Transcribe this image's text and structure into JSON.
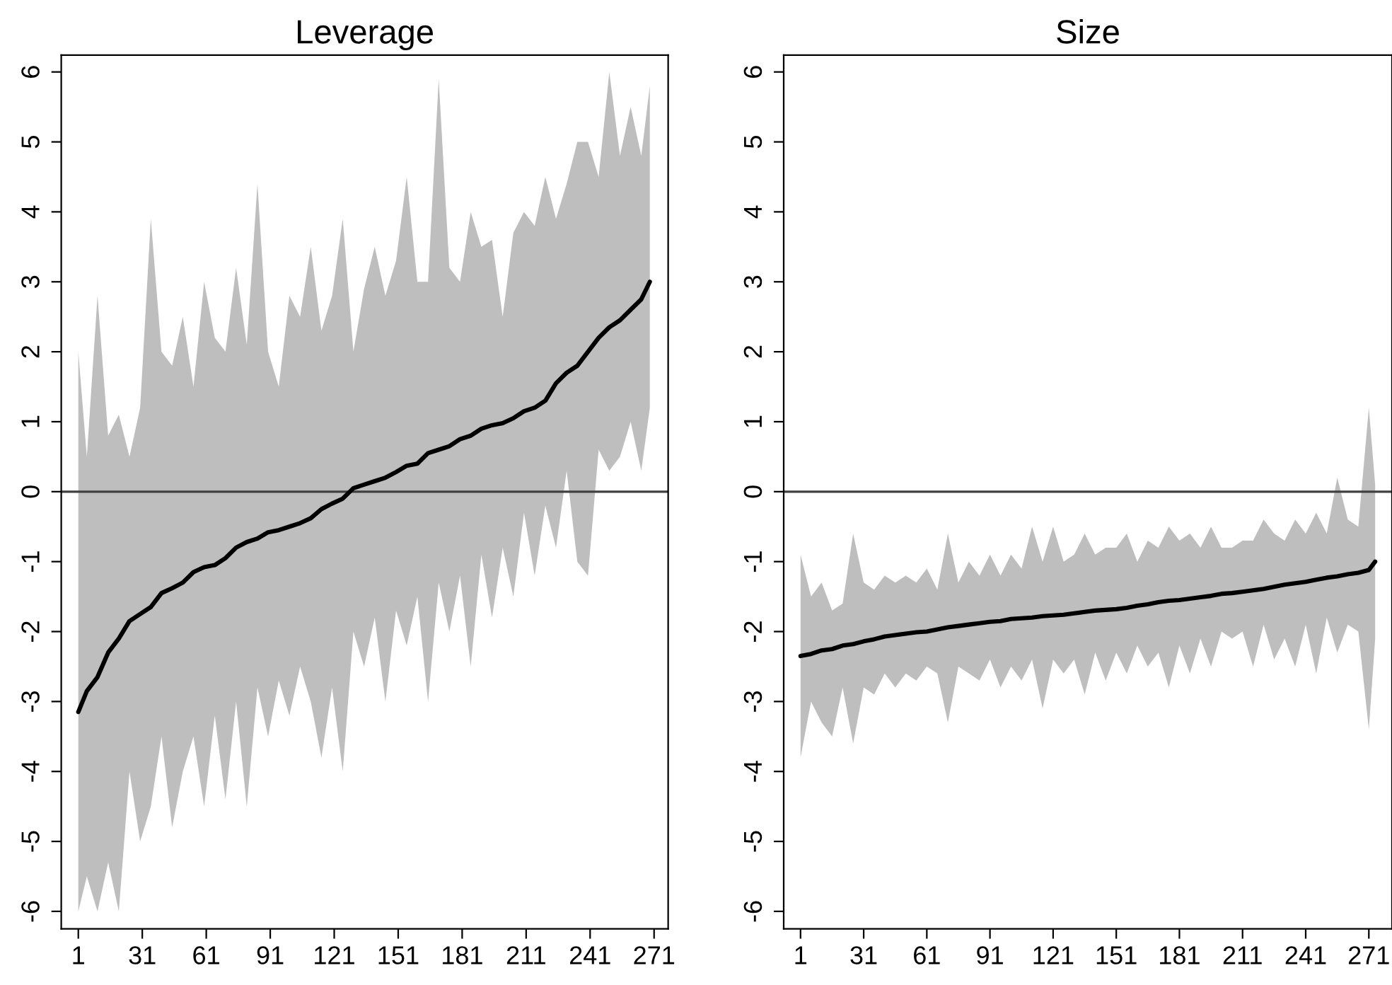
{
  "chart_data": [
    {
      "type": "line",
      "title": "Leverage",
      "x": [
        1,
        5,
        10,
        15,
        20,
        25,
        30,
        35,
        40,
        45,
        50,
        55,
        60,
        65,
        70,
        75,
        80,
        85,
        90,
        95,
        100,
        105,
        110,
        115,
        120,
        125,
        130,
        135,
        140,
        145,
        150,
        155,
        160,
        165,
        170,
        175,
        180,
        185,
        190,
        195,
        200,
        205,
        210,
        215,
        220,
        225,
        230,
        235,
        240,
        245,
        250,
        255,
        260,
        265,
        269
      ],
      "series": [
        {
          "color": "#000000",
          "values": [
            -3.15,
            -2.85,
            -2.65,
            -2.3,
            -2.1,
            -1.85,
            -1.75,
            -1.65,
            -1.45,
            -1.38,
            -1.3,
            -1.15,
            -1.08,
            -1.05,
            -0.95,
            -0.8,
            -0.72,
            -0.67,
            -0.58,
            -0.55,
            -0.5,
            -0.45,
            -0.38,
            -0.25,
            -0.17,
            -0.1,
            0.05,
            0.1,
            0.15,
            0.2,
            0.28,
            0.37,
            0.4,
            0.55,
            0.6,
            0.65,
            0.75,
            0.8,
            0.9,
            0.95,
            0.98,
            1.05,
            1.15,
            1.2,
            1.3,
            1.55,
            1.7,
            1.8,
            2.0,
            2.2,
            2.35,
            2.45,
            2.6,
            2.75,
            3.0
          ],
          "upper": [
            2.0,
            0.5,
            2.8,
            0.8,
            1.1,
            0.5,
            1.2,
            3.9,
            2.0,
            1.8,
            2.5,
            1.5,
            3.0,
            2.2,
            2.0,
            3.2,
            2.1,
            4.4,
            2.0,
            1.5,
            2.8,
            2.5,
            3.5,
            2.3,
            2.8,
            3.9,
            2.0,
            2.9,
            3.5,
            2.8,
            3.3,
            4.5,
            3.0,
            3.0,
            5.9,
            3.2,
            3.0,
            4.0,
            3.5,
            3.6,
            2.5,
            3.7,
            4.0,
            3.8,
            4.5,
            3.9,
            4.4,
            5.0,
            5.0,
            4.5,
            6.0,
            4.8,
            5.5,
            4.8,
            5.8
          ],
          "lower": [
            -6.0,
            -5.5,
            -6.0,
            -5.3,
            -6.0,
            -4.0,
            -5.0,
            -4.5,
            -3.5,
            -4.8,
            -4.0,
            -3.5,
            -4.5,
            -3.2,
            -4.4,
            -3.0,
            -4.5,
            -2.8,
            -3.5,
            -2.7,
            -3.2,
            -2.5,
            -3.0,
            -3.8,
            -2.8,
            -4.0,
            -2.0,
            -2.5,
            -1.8,
            -3.0,
            -1.7,
            -2.2,
            -1.5,
            -3.0,
            -1.3,
            -2.0,
            -1.2,
            -2.5,
            -0.9,
            -1.8,
            -0.8,
            -1.5,
            -0.3,
            -1.2,
            -0.2,
            -0.8,
            0.3,
            -1.0,
            -1.2,
            0.6,
            0.3,
            0.5,
            1.0,
            0.3,
            1.2
          ]
        }
      ],
      "xlim": [
        -7,
        277.6
      ],
      "xticks": [
        1,
        31,
        61,
        91,
        121,
        151,
        181,
        211,
        241,
        271
      ],
      "ylim": [
        -6.25,
        6.24
      ],
      "yticks": [
        -6,
        -5,
        -4,
        -3,
        -2,
        -1,
        0,
        1,
        2,
        3,
        4,
        5,
        6
      ],
      "ref_lines": [
        {
          "axis": "y",
          "value": 0,
          "color": "#404040"
        }
      ]
    },
    {
      "type": "line",
      "title": "Size",
      "x": [
        1,
        6,
        11,
        16,
        21,
        26,
        31,
        36,
        41,
        46,
        51,
        56,
        61,
        66,
        71,
        76,
        81,
        86,
        91,
        96,
        101,
        106,
        111,
        116,
        121,
        126,
        131,
        136,
        141,
        146,
        151,
        156,
        161,
        166,
        171,
        176,
        181,
        186,
        191,
        196,
        201,
        206,
        211,
        216,
        221,
        226,
        231,
        236,
        241,
        246,
        251,
        256,
        261,
        266,
        271,
        274
      ],
      "series": [
        {
          "color": "#000000",
          "values": [
            -2.35,
            -2.32,
            -2.27,
            -2.25,
            -2.2,
            -2.18,
            -2.14,
            -2.11,
            -2.07,
            -2.05,
            -2.03,
            -2.01,
            -2.0,
            -1.97,
            -1.94,
            -1.92,
            -1.9,
            -1.88,
            -1.86,
            -1.85,
            -1.82,
            -1.81,
            -1.8,
            -1.78,
            -1.77,
            -1.76,
            -1.74,
            -1.72,
            -1.7,
            -1.69,
            -1.68,
            -1.66,
            -1.63,
            -1.61,
            -1.58,
            -1.56,
            -1.55,
            -1.53,
            -1.51,
            -1.49,
            -1.46,
            -1.45,
            -1.43,
            -1.41,
            -1.39,
            -1.36,
            -1.33,
            -1.31,
            -1.29,
            -1.26,
            -1.23,
            -1.21,
            -1.18,
            -1.16,
            -1.12,
            -1.0
          ],
          "upper": [
            -0.9,
            -1.5,
            -1.3,
            -1.7,
            -1.6,
            -0.6,
            -1.3,
            -1.4,
            -1.2,
            -1.3,
            -1.2,
            -1.3,
            -1.1,
            -1.4,
            -0.6,
            -1.3,
            -1.0,
            -1.2,
            -0.9,
            -1.2,
            -0.9,
            -1.1,
            -0.5,
            -1.0,
            -0.5,
            -1.0,
            -0.9,
            -0.6,
            -0.9,
            -0.8,
            -0.8,
            -0.6,
            -1.0,
            -0.7,
            -0.8,
            -0.5,
            -0.7,
            -0.6,
            -0.8,
            -0.5,
            -0.8,
            -0.8,
            -0.7,
            -0.7,
            -0.4,
            -0.6,
            -0.7,
            -0.4,
            -0.6,
            -0.3,
            -0.6,
            0.2,
            -0.4,
            -0.5,
            1.2,
            0.1
          ],
          "lower": [
            -3.8,
            -3.0,
            -3.3,
            -3.5,
            -2.8,
            -3.6,
            -2.8,
            -2.9,
            -2.6,
            -2.8,
            -2.6,
            -2.7,
            -2.5,
            -2.6,
            -3.3,
            -2.5,
            -2.6,
            -2.7,
            -2.4,
            -2.8,
            -2.5,
            -2.7,
            -2.4,
            -3.1,
            -2.4,
            -2.6,
            -2.4,
            -2.9,
            -2.3,
            -2.7,
            -2.3,
            -2.6,
            -2.2,
            -2.5,
            -2.3,
            -2.8,
            -2.2,
            -2.6,
            -2.1,
            -2.5,
            -2.0,
            -2.1,
            -2.0,
            -2.5,
            -1.9,
            -2.4,
            -2.1,
            -2.5,
            -1.9,
            -2.6,
            -1.8,
            -2.3,
            -1.9,
            -2.0,
            -3.4,
            -2.1
          ]
        }
      ],
      "xlim": [
        -7,
        282
      ],
      "xticks": [
        1,
        31,
        61,
        91,
        121,
        151,
        181,
        211,
        241,
        271
      ],
      "ylim": [
        -6.25,
        6.24
      ],
      "yticks": [
        -6,
        -5,
        -4,
        -3,
        -2,
        -1,
        0,
        1,
        2,
        3,
        4,
        5,
        6
      ],
      "ref_lines": [
        {
          "axis": "y",
          "value": 0,
          "color": "#404040"
        }
      ]
    }
  ]
}
